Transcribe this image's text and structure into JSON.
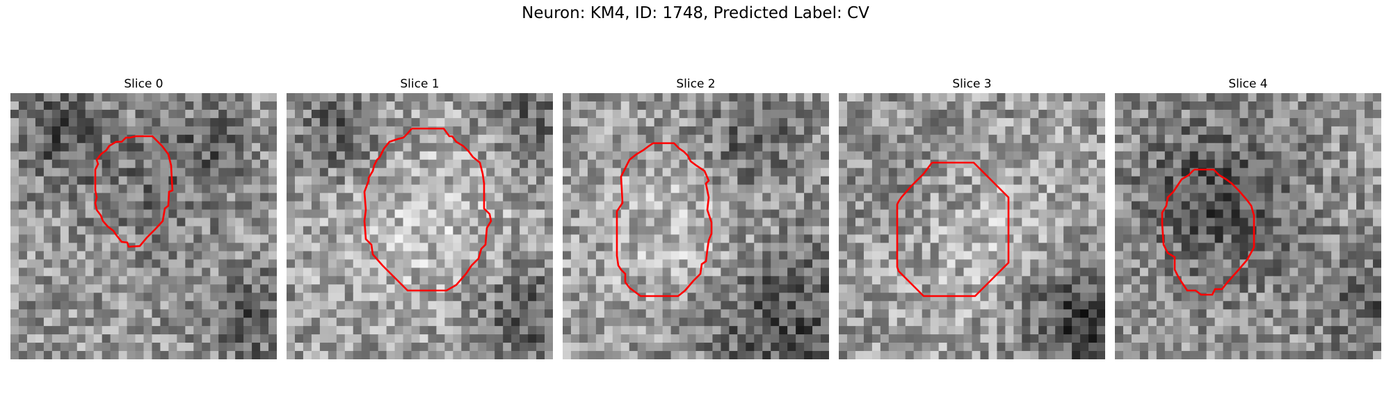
{
  "figure": {
    "title": "Neuron: KM4, ID: 1748, Predicted Label: CV"
  },
  "panels": [
    {
      "title": "Slice 0"
    },
    {
      "title": "Slice 1"
    },
    {
      "title": "Slice 2"
    },
    {
      "title": "Slice 3"
    },
    {
      "title": "Slice 4"
    }
  ],
  "colors": {
    "contour": "#ff0000",
    "background": "#ffffff"
  }
}
